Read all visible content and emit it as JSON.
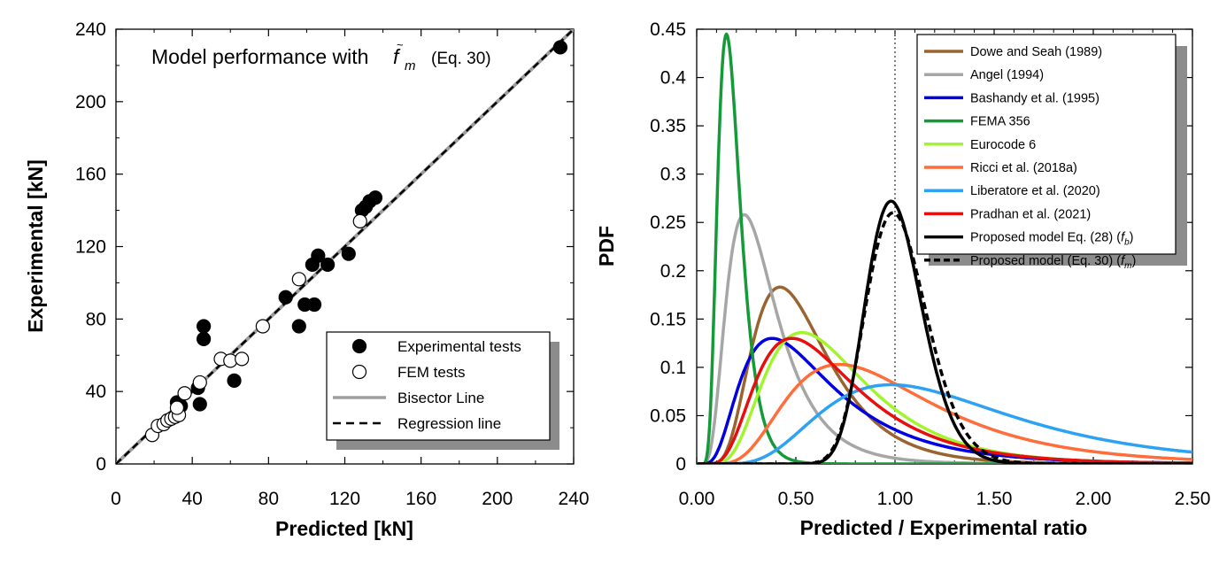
{
  "chart_data": [
    {
      "type": "scatter",
      "xlabel": "Predicted [kN]",
      "ylabel": "Experimental [kN]",
      "xlim": [
        0,
        240
      ],
      "ylim": [
        0,
        240
      ],
      "xticks": [
        "0",
        "40",
        "80",
        "120",
        "160",
        "200",
        "240"
      ],
      "yticks": [
        "0",
        "40",
        "80",
        "120",
        "160",
        "200",
        "240"
      ],
      "annotation": {
        "prefix": "Model performance with ",
        "symbol": "f",
        "sub": "m",
        "suffix": "(Eq. 30)"
      },
      "legend_position": "bottom-right",
      "series": [
        {
          "name": "Experimental tests",
          "marker": "filled-circle",
          "color": "#000000",
          "points": [
            [
              32,
              34
            ],
            [
              34,
              32
            ],
            [
              43,
              42
            ],
            [
              44,
              33
            ],
            [
              46,
              76
            ],
            [
              46,
              69
            ],
            [
              62,
              46
            ],
            [
              89,
              92
            ],
            [
              96,
              76
            ],
            [
              99,
              88
            ],
            [
              104,
              88
            ],
            [
              103,
              110
            ],
            [
              106,
              115
            ],
            [
              111,
              110
            ],
            [
              122,
              116
            ],
            [
              129,
              140
            ],
            [
              131,
              142
            ],
            [
              133,
              145
            ],
            [
              136,
              147
            ],
            [
              233,
              230
            ]
          ]
        },
        {
          "name": "FEM tests",
          "marker": "open-circle",
          "color": "#000000",
          "points": [
            [
              19,
              16
            ],
            [
              22,
              21
            ],
            [
              25,
              22
            ],
            [
              27,
              24
            ],
            [
              29,
              25
            ],
            [
              31,
              26
            ],
            [
              33,
              27
            ],
            [
              32,
              31
            ],
            [
              36,
              39
            ],
            [
              44,
              45
            ],
            [
              55,
              58
            ],
            [
              60,
              57
            ],
            [
              66,
              58
            ],
            [
              77,
              76
            ],
            [
              96,
              102
            ],
            [
              128,
              134
            ]
          ]
        },
        {
          "name": "Bisector Line",
          "style": "solid",
          "color": "#9e9e9e",
          "points": [
            [
              0,
              0
            ],
            [
              240,
              240
            ]
          ]
        },
        {
          "name": "Regression line",
          "style": "dashed",
          "color": "#000000",
          "points": [
            [
              0,
              0
            ],
            [
              240,
              240
            ]
          ]
        }
      ]
    },
    {
      "type": "line",
      "xlabel": "Predicted / Experimental ratio",
      "ylabel": "PDF",
      "xlim": [
        0,
        2.5
      ],
      "ylim": [
        0,
        0.45
      ],
      "xticks": [
        "0.00",
        "0.50",
        "1.00",
        "1.50",
        "2.00",
        "2.50"
      ],
      "yticks": [
        "0",
        "0.05",
        "0.1",
        "0.15",
        "0.2",
        "0.25",
        "0.3",
        "0.35",
        "0.4",
        "0.45"
      ],
      "reference_line_x": 1.0,
      "legend_position": "top-right",
      "series": [
        {
          "name": "Dowe and Seah (1989)",
          "color": "#9a6430",
          "style": "solid",
          "sigma": 0.45,
          "peak_x": 0.42,
          "peak_y": 0.183
        },
        {
          "name": "Angel (1994)",
          "color": "#a6a6a6",
          "style": "solid",
          "sigma": 0.52,
          "peak_x": 0.24,
          "peak_y": 0.258
        },
        {
          "name": "Bashandy et al. (1995)",
          "color": "#0000e0",
          "style": "solid",
          "sigma": 0.6,
          "peak_x": 0.38,
          "peak_y": 0.13
        },
        {
          "name": "FEMA 356",
          "color": "#159a3a",
          "style": "solid",
          "sigma": 0.38,
          "peak_x": 0.15,
          "peak_y": 0.445
        },
        {
          "name": "Eurocode 6",
          "color": "#a2f52d",
          "style": "solid",
          "sigma": 0.48,
          "peak_x": 0.53,
          "peak_y": 0.136
        },
        {
          "name": "Ricci et al. (2018a)",
          "color": "#ff6d3a",
          "style": "solid",
          "sigma": 0.5,
          "peak_x": 0.72,
          "peak_y": 0.103
        },
        {
          "name": "Liberatore et al. (2020)",
          "color": "#2ea2f2",
          "style": "solid",
          "sigma": 0.48,
          "peak_x": 0.98,
          "peak_y": 0.082
        },
        {
          "name": "Pradhan et al. (2021)",
          "color": "#e80e0e",
          "style": "solid",
          "sigma": 0.52,
          "peak_x": 0.48,
          "peak_y": 0.13
        },
        {
          "name": "Proposed model Eq. (28)",
          "symbol": "f",
          "sub": "b",
          "color": "#000000",
          "style": "solid",
          "sigma": 0.145,
          "peak_x": 0.98,
          "peak_y": 0.272
        },
        {
          "name": "Proposed model (Eq. 30)",
          "symbol": "f",
          "sub": "m",
          "color": "#000000",
          "style": "dashed",
          "sigma": 0.155,
          "peak_x": 0.99,
          "peak_y": 0.26
        }
      ]
    }
  ]
}
